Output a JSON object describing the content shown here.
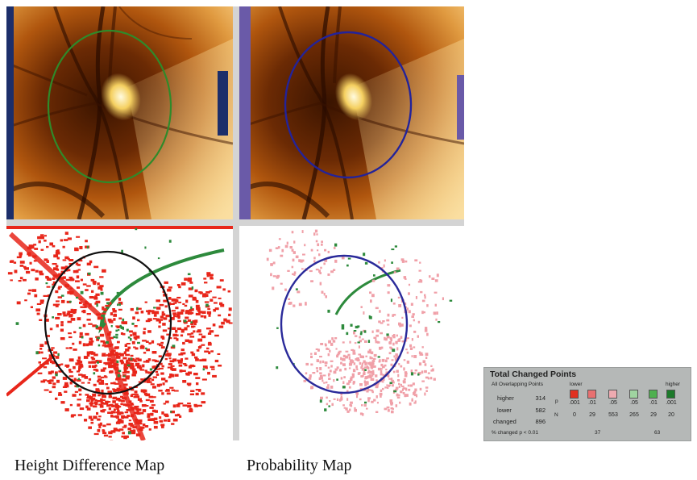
{
  "captions": {
    "left": "Height Difference Map",
    "right": "Probability Map"
  },
  "overlay_colors": {
    "top_left_ring": "#2f8a2a",
    "top_right_ring": "#23239a",
    "bottom_left_ring": "#111111",
    "bottom_right_ring": "#2a2a9a",
    "lower_red": "#e8261a",
    "lower_pink": "#f0a0a8",
    "higher_green": "#2d8a3c"
  },
  "legend": {
    "title": "Total Changed Points",
    "subtitle": "All Overlapping Points",
    "rows": [
      {
        "label": "higher",
        "value": "314"
      },
      {
        "label": "lower",
        "value": "582"
      },
      {
        "label": "changed",
        "value": "896"
      }
    ],
    "pct_label": "% changed p < 0.01",
    "pct_lower": "37",
    "pct_higher": "63",
    "lower_heading": "lower",
    "higher_heading": "higher",
    "p_label": "p",
    "n_label": "N",
    "swatches": [
      {
        "color": "#e03020",
        "p": ".001",
        "n": "0"
      },
      {
        "color": "#e87070",
        "p": ".01",
        "n": "29"
      },
      {
        "color": "#eeaab0",
        "p": ".05",
        "n": "553"
      },
      {
        "color": "#9fd4a0",
        "p": ".05",
        "n": "265"
      },
      {
        "color": "#4fb04f",
        "p": ".01",
        "n": "29"
      },
      {
        "color": "#1c7a2a",
        "p": ".001",
        "n": "20"
      }
    ]
  }
}
